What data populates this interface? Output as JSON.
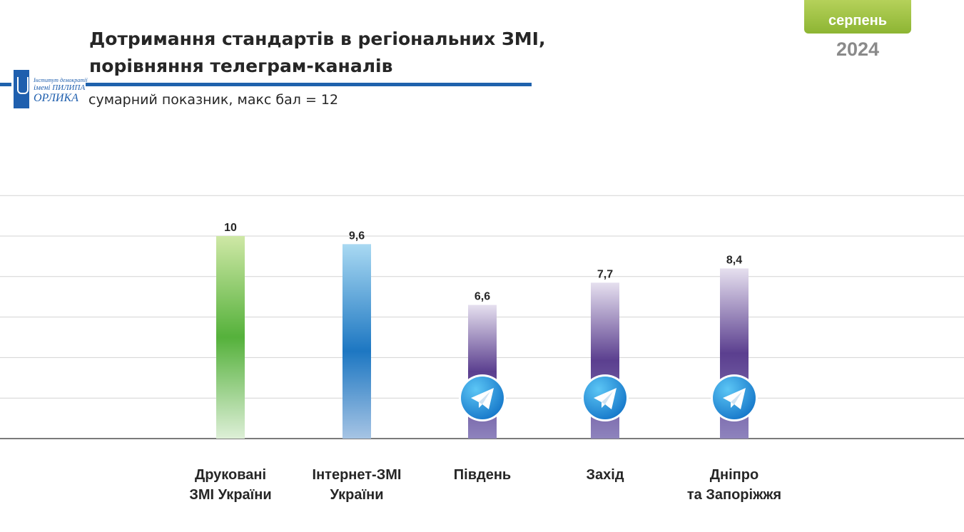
{
  "header": {
    "title_line1": "Дотримання стандартів в регіональних ЗМІ,",
    "title_line2": "порівняння телеграм-каналів",
    "subtitle": "сумарний показник, макс бал = 12",
    "badge_month": "серпень",
    "badge_year": "2024"
  },
  "logo": {
    "line1": "Інститут демократії",
    "line2": "імені ПИЛИПА",
    "line3": "ОРЛИКА"
  },
  "colors": {
    "title_rule": "#1f62ad",
    "badge": "#9cc23f",
    "bar_green": "#55b13b",
    "bar_blue": "#1d77c2",
    "bar_purple": "#5b3f8f",
    "telegram": "#2aa0e4"
  },
  "chart_data": {
    "type": "bar",
    "title": "",
    "ylim": [
      0,
      12
    ],
    "grid": true,
    "categories": [
      [
        "Друковані",
        "ЗМІ України"
      ],
      [
        "Інтернет-ЗМІ",
        "України"
      ],
      [
        "Південь"
      ],
      [
        "Захід"
      ],
      [
        "Дніпро",
        "та Запоріжжя"
      ]
    ],
    "values": [
      10,
      9.6,
      6.6,
      7.7,
      8.4
    ],
    "value_labels": [
      "10",
      "9,6",
      "6,6",
      "7,7",
      "8,4"
    ],
    "bar_styles": [
      "green",
      "blue",
      "purple",
      "purple",
      "purple"
    ],
    "bar_icons": [
      "",
      "",
      "telegram-icon",
      "telegram-icon",
      "telegram-icon"
    ]
  }
}
